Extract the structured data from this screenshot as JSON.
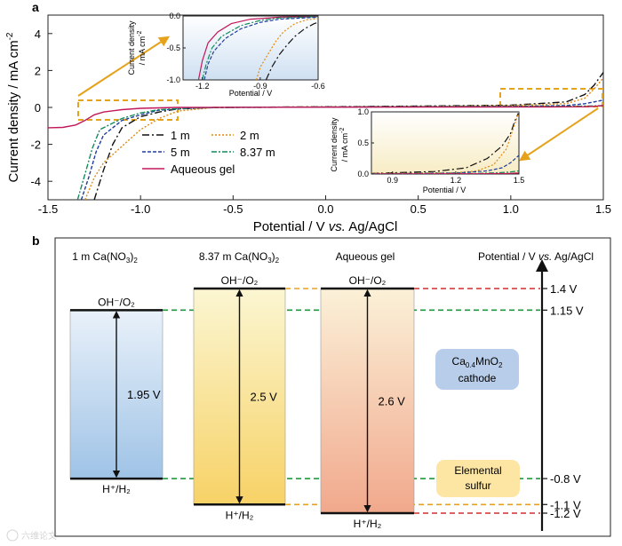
{
  "panel_a": {
    "label": "a",
    "chart_data": {
      "type": "line",
      "title": "",
      "xlabel_main": "Potential / V ",
      "xlabel_italic": "vs.",
      "xlabel_tail": " Ag/AgCl",
      "ylabel": "Current density / mA cm",
      "ylabel_sup": "-2",
      "xlim": [
        -1.5,
        1.5
      ],
      "ylim": [
        -5,
        5
      ],
      "xticks": [
        -1.5,
        -1.0,
        -0.5,
        0.0,
        0.5,
        1.0,
        1.5
      ],
      "xtick_labels": [
        "-1.5",
        "-1.0",
        "-0.5",
        "0.0",
        "0.5",
        "1.0",
        "1.5"
      ],
      "yticks": [
        4,
        2,
        0,
        -2,
        -4
      ],
      "ytick_labels": [
        "4",
        "2",
        "0",
        "-2",
        "-4"
      ],
      "legend": {
        "placement": "lower-left",
        "entries": [
          {
            "key": "s1",
            "label": "1 m"
          },
          {
            "key": "s2",
            "label": "2 m"
          },
          {
            "key": "s5",
            "label": "5 m"
          },
          {
            "key": "s8",
            "label": "8.37 m"
          },
          {
            "key": "gel",
            "label": "Aqueous gel"
          }
        ]
      },
      "series": [
        {
          "key": "s1",
          "name": "1 m",
          "color": "#111111",
          "dash": "8 3 2 3",
          "points": [
            [
              -1.25,
              -5
            ],
            [
              -1.2,
              -3.4
            ],
            [
              -1.15,
              -2.0
            ],
            [
              -1.1,
              -1.1
            ],
            [
              -1.0,
              -0.5
            ],
            [
              -0.9,
              -0.25
            ],
            [
              -0.8,
              -0.08
            ],
            [
              -0.6,
              0
            ],
            [
              0.2,
              0.05
            ],
            [
              0.6,
              0.08
            ],
            [
              1.0,
              0.12
            ],
            [
              1.3,
              0.3
            ],
            [
              1.4,
              0.7
            ],
            [
              1.45,
              1.2
            ],
            [
              1.5,
              1.9
            ]
          ]
        },
        {
          "key": "s2",
          "name": "2 m",
          "color": "#e08a10",
          "dash": "2 2",
          "points": [
            [
              -1.3,
              -5
            ],
            [
              -1.25,
              -3.8
            ],
            [
              -1.2,
              -3.0
            ],
            [
              -1.1,
              -2.1
            ],
            [
              -1.0,
              -1.2
            ],
            [
              -0.9,
              -0.6
            ],
            [
              -0.8,
              -0.2
            ],
            [
              -0.6,
              0
            ],
            [
              0.2,
              0.04
            ],
            [
              0.6,
              0.06
            ],
            [
              1.0,
              0.1
            ],
            [
              1.3,
              0.2
            ],
            [
              1.4,
              0.5
            ],
            [
              1.45,
              1.0
            ],
            [
              1.5,
              1.6
            ]
          ]
        },
        {
          "key": "s5",
          "name": "5 m",
          "color": "#1e3c9c",
          "dash": "4 2",
          "points": [
            [
              -1.32,
              -5
            ],
            [
              -1.28,
              -3.8
            ],
            [
              -1.24,
              -2.4
            ],
            [
              -1.2,
              -1.5
            ],
            [
              -1.1,
              -0.7
            ],
            [
              -1.0,
              -0.4
            ],
            [
              -0.9,
              -0.15
            ],
            [
              -0.7,
              -0.03
            ],
            [
              -0.5,
              0
            ],
            [
              0.2,
              0.03
            ],
            [
              1.0,
              0.06
            ],
            [
              1.3,
              0.1
            ],
            [
              1.4,
              0.2
            ],
            [
              1.45,
              0.3
            ],
            [
              1.5,
              0.4
            ]
          ]
        },
        {
          "key": "s8",
          "name": "8.37 m",
          "color": "#138a5a",
          "dash": "6 2 2 2",
          "points": [
            [
              -1.34,
              -5
            ],
            [
              -1.3,
              -3.6
            ],
            [
              -1.26,
              -2.2
            ],
            [
              -1.22,
              -1.2
            ],
            [
              -1.1,
              -0.6
            ],
            [
              -1.0,
              -0.3
            ],
            [
              -0.9,
              -0.12
            ],
            [
              -0.7,
              -0.02
            ],
            [
              -0.5,
              0
            ],
            [
              0.2,
              0.02
            ],
            [
              1.0,
              0.05
            ],
            [
              1.3,
              0.06
            ],
            [
              1.4,
              0.07
            ],
            [
              1.45,
              0.08
            ],
            [
              1.5,
              0.1
            ]
          ]
        },
        {
          "key": "gel",
          "name": "Aqueous gel",
          "color": "#c2185b",
          "dash": "",
          "points": [
            [
              -1.5,
              -1.1
            ],
            [
              -1.42,
              -1.08
            ],
            [
              -1.35,
              -0.95
            ],
            [
              -1.3,
              -0.7
            ],
            [
              -1.25,
              -0.4
            ],
            [
              -1.2,
              -0.25
            ],
            [
              -1.1,
              -0.12
            ],
            [
              -1.0,
              -0.05
            ],
            [
              -0.8,
              0
            ],
            [
              0.5,
              0.02
            ],
            [
              1.2,
              0.03
            ],
            [
              1.4,
              0.04
            ],
            [
              1.45,
              0.06
            ],
            [
              1.5,
              0.1
            ]
          ]
        }
      ],
      "inset_left": {
        "xlim": [
          -1.3,
          -0.6
        ],
        "ylim": [
          -1.0,
          0.0
        ],
        "xlabel": "Potential / V",
        "ylabel_line1": "Current density",
        "ylabel_line2": "/ mA cm",
        "ylabel_sup": "-2",
        "xticks": [
          -1.2,
          -0.9,
          -0.6
        ],
        "xtick_labels": [
          "-1.2",
          "-0.9",
          "-0.6"
        ],
        "yticks": [
          0.0,
          -0.5,
          -1.0
        ],
        "ytick_labels": [
          "0.0",
          "-0.5",
          "-1.0"
        ],
        "series": [
          {
            "key": "gel",
            "points": [
              [
                -1.22,
                -1.0
              ],
              [
                -1.2,
                -0.7
              ],
              [
                -1.17,
                -0.42
              ],
              [
                -1.12,
                -0.25
              ],
              [
                -1.05,
                -0.12
              ],
              [
                -0.95,
                -0.05
              ],
              [
                -0.8,
                -0.02
              ],
              [
                -0.6,
                -0.01
              ]
            ]
          },
          {
            "key": "s8",
            "points": [
              [
                -1.2,
                -1.0
              ],
              [
                -1.18,
                -0.75
              ],
              [
                -1.15,
                -0.5
              ],
              [
                -1.1,
                -0.32
              ],
              [
                -1.0,
                -0.15
              ],
              [
                -0.9,
                -0.07
              ],
              [
                -0.8,
                -0.03
              ],
              [
                -0.6,
                -0.01
              ]
            ]
          },
          {
            "key": "s5",
            "points": [
              [
                -1.19,
                -1.0
              ],
              [
                -1.17,
                -0.75
              ],
              [
                -1.14,
                -0.55
              ],
              [
                -1.08,
                -0.35
              ],
              [
                -1.0,
                -0.2
              ],
              [
                -0.9,
                -0.1
              ],
              [
                -0.8,
                -0.05
              ],
              [
                -0.6,
                -0.02
              ]
            ]
          },
          {
            "key": "s2",
            "points": [
              [
                -0.92,
                -1.0
              ],
              [
                -0.9,
                -0.8
              ],
              [
                -0.86,
                -0.6
              ],
              [
                -0.82,
                -0.4
              ],
              [
                -0.78,
                -0.25
              ],
              [
                -0.72,
                -0.12
              ],
              [
                -0.66,
                -0.06
              ],
              [
                -0.6,
                -0.04
              ]
            ]
          },
          {
            "key": "s1",
            "points": [
              [
                -0.87,
                -1.0
              ],
              [
                -0.84,
                -0.8
              ],
              [
                -0.8,
                -0.6
              ],
              [
                -0.76,
                -0.45
              ],
              [
                -0.72,
                -0.32
              ],
              [
                -0.67,
                -0.2
              ],
              [
                -0.62,
                -0.12
              ],
              [
                -0.6,
                -0.1
              ]
            ]
          }
        ]
      },
      "inset_right": {
        "xlim": [
          0.8,
          1.5
        ],
        "ylim": [
          0.0,
          1.0
        ],
        "xlabel": "Potential / V",
        "ylabel_line1": "Current density",
        "ylabel_line2": "/ mA cm",
        "ylabel_sup": "-2",
        "xticks": [
          0.9,
          1.2,
          1.5
        ],
        "xtick_labels": [
          "0.9",
          "1.2",
          "1.5"
        ],
        "yticks": [
          1.0,
          0.5,
          0.0
        ],
        "ytick_labels": [
          "1.0",
          "0.5",
          "0.0"
        ],
        "series": [
          {
            "key": "s1",
            "points": [
              [
                0.8,
                0.01
              ],
              [
                1.1,
                0.04
              ],
              [
                1.25,
                0.1
              ],
              [
                1.35,
                0.25
              ],
              [
                1.42,
                0.45
              ],
              [
                1.46,
                0.65
              ],
              [
                1.48,
                0.85
              ],
              [
                1.5,
                1.0
              ]
            ]
          },
          {
            "key": "s2",
            "points": [
              [
                0.8,
                0.01
              ],
              [
                1.2,
                0.02
              ],
              [
                1.3,
                0.05
              ],
              [
                1.38,
                0.15
              ],
              [
                1.44,
                0.4
              ],
              [
                1.47,
                0.7
              ],
              [
                1.49,
                0.9
              ],
              [
                1.5,
                1.0
              ]
            ]
          },
          {
            "key": "s5",
            "points": [
              [
                0.8,
                0.005
              ],
              [
                1.2,
                0.015
              ],
              [
                1.35,
                0.05
              ],
              [
                1.42,
                0.1
              ],
              [
                1.46,
                0.18
              ],
              [
                1.5,
                0.3
              ]
            ]
          },
          {
            "key": "s8",
            "points": [
              [
                0.8,
                0.004
              ],
              [
                1.3,
                0.01
              ],
              [
                1.4,
                0.02
              ],
              [
                1.45,
                0.03
              ],
              [
                1.5,
                0.05
              ]
            ]
          },
          {
            "key": "gel",
            "points": [
              [
                0.8,
                0.0
              ],
              [
                1.3,
                0.005
              ],
              [
                1.45,
                0.01
              ],
              [
                1.5,
                0.015
              ]
            ]
          }
        ]
      }
    }
  },
  "panel_b": {
    "label": "b",
    "axis_title_main": "Potential / V ",
    "axis_title_italic": "vs.",
    "axis_title_tail": " Ag/AgCl",
    "columns": [
      {
        "key": "c1",
        "title_main": "1 m Ca(NO",
        "title_sub": "3",
        "title_tail": ")",
        "title_sub2": "2",
        "window_value": 1.95,
        "window_label": "1.95 V"
      },
      {
        "key": "c2",
        "title_main": "8.37 m Ca(NO",
        "title_sub": "3",
        "title_tail": ")",
        "title_sub2": "2",
        "window_value": 2.5,
        "window_label": "2.5 V"
      },
      {
        "key": "c3",
        "title_main": "Aqueous gel",
        "title_sub": "",
        "title_tail": "",
        "title_sub2": "",
        "window_value": 2.6,
        "window_label": "2.6 V"
      }
    ],
    "top_label": "OH⁻/O₂",
    "bottom_label": "H⁺/H₂",
    "potential_levels": [
      {
        "value": 1.4,
        "label": "1.4 V"
      },
      {
        "value": 1.15,
        "label": "1.15 V"
      },
      {
        "value": -0.8,
        "label": "-0.8 V"
      },
      {
        "value": -1.1,
        "label": "-1.1 V"
      },
      {
        "value": -1.2,
        "label": "-1.2 V"
      }
    ],
    "cathode_main": "Ca",
    "cathode_sub": "0.4",
    "cathode_tail": "MnO",
    "cathode_sub2": "2",
    "cathode_line2": "cathode",
    "anode_line1": "Elemental",
    "anode_line2": "sulfur"
  },
  "watermark": "六维论文",
  "colors": {
    "gold": "#e5a21b",
    "green_dash": "#1e9a3c",
    "orange_dash": "#e8a020",
    "red_dash": "#d32f2f",
    "cathode_fill": "#b7cde9",
    "anode_fill": "#fde6a3"
  }
}
